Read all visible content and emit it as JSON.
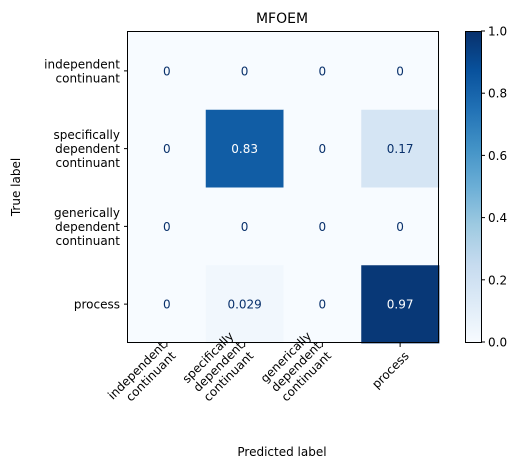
{
  "chart_data": {
    "type": "heatmap",
    "title": "MFOEM",
    "xlabel": "Predicted label",
    "ylabel": "True label",
    "row_labels": [
      [
        "independent",
        "continuant"
      ],
      [
        "specifically",
        "dependent",
        "continuant"
      ],
      [
        "generically",
        "dependent",
        "continuant"
      ],
      [
        "process"
      ]
    ],
    "col_labels": [
      [
        "independent",
        "continuant"
      ],
      [
        "specifically",
        "dependent",
        "continuant"
      ],
      [
        "generically",
        "dependent",
        "continuant"
      ],
      [
        "process"
      ]
    ],
    "matrix": [
      [
        0,
        0,
        0,
        0
      ],
      [
        0,
        0.83,
        0,
        0.17
      ],
      [
        0,
        0,
        0,
        0
      ],
      [
        0,
        0.029,
        0,
        0.97
      ]
    ],
    "cell_labels": [
      [
        "0",
        "0",
        "0",
        "0"
      ],
      [
        "0",
        "0.83",
        "0",
        "0.17"
      ],
      [
        "0",
        "0",
        "0",
        "0"
      ],
      [
        "0",
        "0.029",
        "0",
        "0.97"
      ]
    ],
    "colormap": "Blues",
    "colorbar": {
      "range": [
        0,
        1
      ],
      "ticks": [
        0.0,
        0.2,
        0.4,
        0.6,
        0.8,
        1.0
      ],
      "tick_labels": [
        "0.0",
        "0.2",
        "0.4",
        "0.6",
        "0.8",
        "1.0"
      ]
    }
  }
}
